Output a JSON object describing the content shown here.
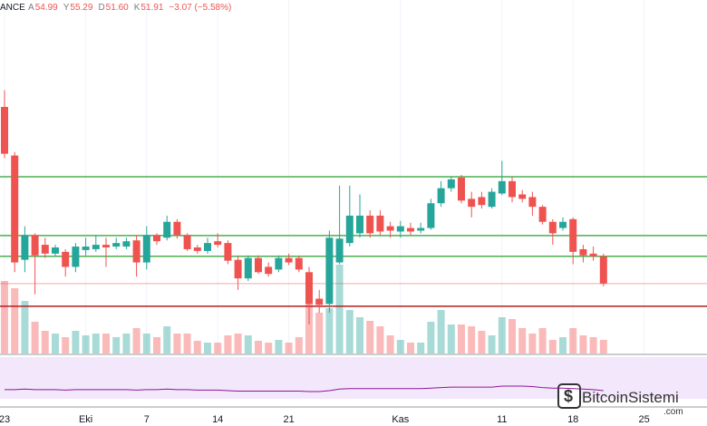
{
  "chart_data": {
    "type": "candlestick",
    "header": {
      "source": "ANCE",
      "fields": [
        {
          "label": "A",
          "text": "54.99"
        },
        {
          "label": "Y",
          "text": "55.29"
        },
        {
          "label": "D",
          "text": "51.60"
        },
        {
          "label": "K",
          "text": "51.91"
        }
      ],
      "change": "−3.07 (−5.58%)"
    },
    "watermark": {
      "name": "BitcoinSistemi",
      "suffix": ".com"
    },
    "categories": [
      "23",
      null,
      null,
      null,
      null,
      null,
      null,
      null,
      "Eki",
      null,
      null,
      null,
      null,
      null,
      "7",
      null,
      null,
      null,
      null,
      null,
      null,
      "14",
      null,
      null,
      null,
      null,
      null,
      null,
      "21",
      null,
      null,
      null,
      null,
      null,
      null,
      null,
      null,
      null,
      null,
      "Kas",
      null,
      null,
      null,
      null,
      null,
      null,
      null,
      null,
      null,
      "11",
      null,
      null,
      null,
      null,
      null,
      null,
      "18",
      null,
      null,
      null,
      null,
      null,
      null,
      "25"
    ],
    "open": [
      71.9,
      66.4,
      54.6,
      57.4,
      56.3,
      55.3,
      55.5,
      53.8,
      55.7,
      55.8,
      56.3,
      56.1,
      56.1,
      56.8,
      54.3,
      57.4,
      57.1,
      58.9,
      57.4,
      56.0,
      55.6,
      56.7,
      56.5,
      54.6,
      52.5,
      54.8,
      53.8,
      53.5,
      54.8,
      54.8,
      53.2,
      50.2,
      49.6,
      54.3,
      56.5,
      57.6,
      59.6,
      59.6,
      58.4,
      57.8,
      58.2,
      57.9,
      58.2,
      61.0,
      62.7,
      63.9,
      61.5,
      61.7,
      60.6,
      62.1,
      63.5,
      62.0,
      61.7,
      60.6,
      58.9,
      58.2,
      59.2,
      55.8,
      55.3,
      54.99,
      null,
      null,
      null,
      null
    ],
    "high": [
      73.8,
      66.8,
      58.4,
      57.6,
      57.1,
      56.3,
      55.8,
      56.5,
      57.1,
      57.4,
      57.1,
      57.1,
      57.1,
      57.4,
      58.4,
      57.6,
      59.6,
      59.2,
      57.6,
      56.3,
      57.1,
      57.6,
      56.8,
      55.1,
      55.1,
      55.1,
      54.3,
      55.1,
      55.3,
      55.1,
      53.8,
      51.2,
      57.9,
      63.0,
      63.0,
      62.0,
      60.2,
      60.2,
      58.9,
      59.0,
      58.8,
      58.8,
      61.5,
      63.5,
      64.0,
      64.2,
      62.3,
      62.3,
      62.7,
      65.8,
      64.0,
      62.5,
      62.3,
      60.8,
      59.2,
      59.4,
      59.4,
      56.3,
      56.1,
      55.29,
      null,
      null,
      null,
      null
    ],
    "low": [
      66.1,
      53.2,
      53.2,
      50.7,
      54.8,
      55.0,
      52.7,
      53.2,
      55.1,
      55.5,
      53.8,
      55.8,
      55.8,
      52.7,
      53.5,
      56.3,
      56.8,
      57.0,
      55.6,
      55.3,
      55.3,
      56.0,
      54.1,
      51.2,
      52.2,
      53.0,
      52.7,
      53.2,
      54.0,
      53.2,
      47.3,
      48.6,
      48.6,
      54.1,
      56.1,
      57.1,
      57.1,
      57.4,
      57.1,
      57.1,
      57.4,
      57.6,
      58.0,
      60.6,
      62.3,
      61.0,
      59.4,
      60.4,
      60.4,
      61.9,
      61.1,
      61.1,
      59.6,
      58.6,
      56.3,
      57.9,
      54.1,
      54.3,
      54.5,
      51.6,
      null,
      null,
      null,
      null
    ],
    "close": [
      66.6,
      54.3,
      57.4,
      55.1,
      55.3,
      56.0,
      53.8,
      56.1,
      56.1,
      56.3,
      56.0,
      56.5,
      56.7,
      54.3,
      57.4,
      56.7,
      58.9,
      57.4,
      55.8,
      55.6,
      56.5,
      56.3,
      54.5,
      52.5,
      54.8,
      53.2,
      53.0,
      54.8,
      54.3,
      53.5,
      49.6,
      49.5,
      57.1,
      57.0,
      59.6,
      59.6,
      57.6,
      57.8,
      57.9,
      58.4,
      57.8,
      58.2,
      61.0,
      62.7,
      63.7,
      61.3,
      60.6,
      60.8,
      62.3,
      63.5,
      61.7,
      61.5,
      60.6,
      58.9,
      57.6,
      58.9,
      55.5,
      55.1,
      55.0,
      51.91,
      null,
      null,
      null,
      null
    ],
    "volume": [
      80,
      72,
      58,
      35,
      25,
      22,
      18,
      25,
      20,
      22,
      22,
      18,
      22,
      28,
      22,
      18,
      30,
      22,
      22,
      14,
      12,
      12,
      20,
      22,
      20,
      14,
      12,
      15,
      12,
      18,
      62,
      45,
      50,
      98,
      48,
      40,
      36,
      30,
      20,
      15,
      12,
      12,
      35,
      48,
      32,
      32,
      30,
      25,
      20,
      40,
      38,
      28,
      22,
      28,
      15,
      18,
      28,
      20,
      18,
      15,
      null,
      null,
      null,
      null
    ],
    "rsi": [
      33,
      33,
      34,
      33,
      33,
      33,
      32,
      33,
      33,
      33,
      33,
      33,
      33,
      32,
      33,
      33,
      34,
      33,
      33,
      32,
      32,
      32,
      31,
      30,
      30,
      30,
      30,
      30,
      30,
      30,
      29,
      29,
      31,
      34,
      35,
      35,
      35,
      35,
      35,
      35,
      35,
      35,
      36,
      37,
      38,
      38,
      38,
      38,
      38,
      40,
      40,
      40,
      39,
      37,
      36,
      36,
      35,
      34,
      33,
      31,
      null,
      null,
      null,
      null
    ],
    "levels": [
      {
        "value": 64.0,
        "color": "#4caf50"
      },
      {
        "value": 57.35,
        "color": "#4caf50"
      },
      {
        "value": 55.0,
        "color": "#4caf50"
      },
      {
        "value": 49.35,
        "color": "#b71c1c"
      }
    ],
    "up_color": "#26a69a",
    "down_color": "#ef5350",
    "ylim": [
      44,
      84
    ],
    "vlim": [
      0,
      100
    ],
    "rsilim": [
      0,
      100
    ],
    "grid": true
  }
}
